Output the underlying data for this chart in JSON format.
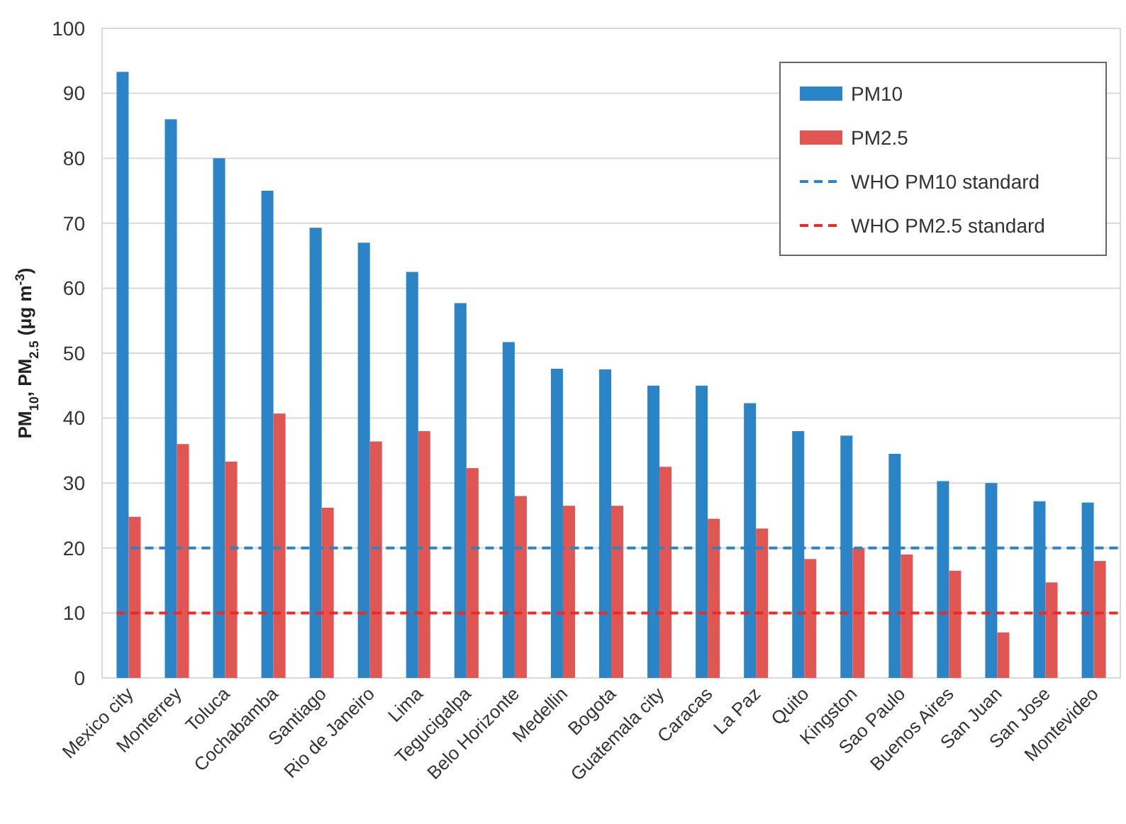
{
  "chart_data": {
    "type": "bar",
    "ylabel": "PM$_{10}$, PM$_{2.5}$ (μg m$^{-3}$)",
    "categories": [
      "Mexico city",
      "Monterrey",
      "Toluca",
      "Cochabamba",
      "Santiago",
      "Rio de Janeiro",
      "Lima",
      "Tegucigalpa",
      "Belo Horizonte",
      "Medellin",
      "Bogota",
      "Guatemala city",
      "Caracas",
      "La Paz",
      "Quito",
      "Kingston",
      "Sao Paulo",
      "Buenos Aires",
      "San Juan",
      "San Jose",
      "Montevideo"
    ],
    "series": [
      {
        "name": "PM10",
        "color": "#2a84c6",
        "values": [
          93.3,
          86,
          80,
          75,
          69.3,
          67,
          62.5,
          57.7,
          51.7,
          47.6,
          47.5,
          45,
          45,
          42.3,
          38,
          37.3,
          34.5,
          30.3,
          30,
          27.2,
          27
        ]
      },
      {
        "name": "PM2.5",
        "color": "#e05652",
        "values": [
          24.8,
          36,
          33.3,
          40.7,
          26.2,
          36.4,
          38,
          32.3,
          28,
          26.5,
          26.5,
          32.5,
          24.5,
          23,
          18.3,
          20,
          19,
          16.5,
          7,
          14.7,
          18
        ]
      }
    ],
    "ref_lines": [
      {
        "axis": "y",
        "value": 20,
        "label": "WHO PM10 standard",
        "color": "#2a84c6",
        "line_style": "dashed"
      },
      {
        "axis": "y",
        "value": 10,
        "label": "WHO PM2.5 standard",
        "color": "#ee2a24",
        "line_style": "dashed"
      }
    ],
    "ylim": [
      0,
      100
    ],
    "yticks": [
      0,
      10,
      20,
      30,
      40,
      50,
      60,
      70,
      80,
      90,
      100
    ],
    "grid": "y",
    "legend": "top right"
  }
}
